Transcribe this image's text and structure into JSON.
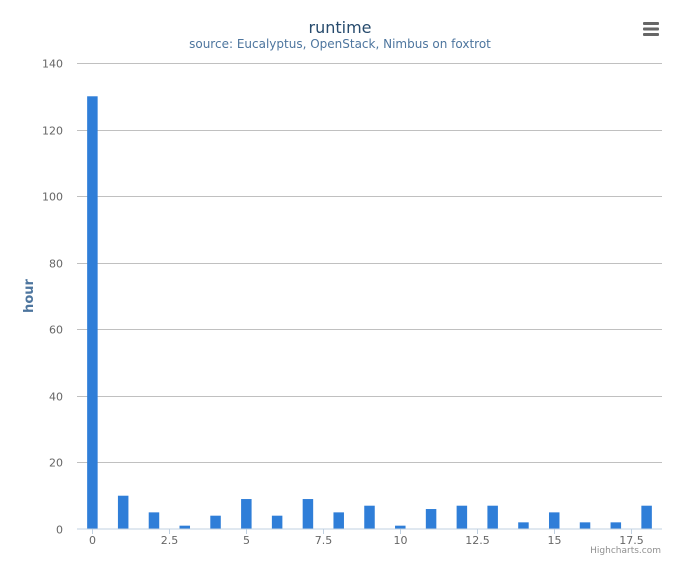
{
  "chart_data": {
    "type": "bar",
    "title": "runtime",
    "subtitle": "source: Eucalyptus, OpenStack, Nimbus on foxtrot",
    "ylabel": "hour",
    "xlabel": "",
    "credits": "Highcharts.com",
    "x": [
      0,
      1,
      2,
      3,
      4,
      5,
      6,
      7,
      8,
      9,
      10,
      11,
      12,
      13,
      14,
      15,
      16,
      17,
      18
    ],
    "values": [
      130,
      10,
      5,
      1,
      4,
      9,
      4,
      9,
      5,
      7,
      1,
      6,
      7,
      7,
      2,
      5,
      2,
      2,
      7
    ],
    "xlim": [
      -0.5,
      18.5
    ],
    "ylim": [
      0,
      140
    ],
    "xticks": [
      0,
      2.5,
      5,
      7.5,
      10,
      12.5,
      15,
      17.5
    ],
    "xtick_labels": [
      "0",
      "2.5",
      "5",
      "7.5",
      "10",
      "12.5",
      "15",
      "17.5"
    ],
    "yticks": [
      0,
      20,
      40,
      60,
      80,
      100,
      120,
      140
    ],
    "ytick_labels": [
      "0",
      "20",
      "40",
      "60",
      "80",
      "100",
      "120",
      "140"
    ],
    "grid": true,
    "legend": "none",
    "colors": {
      "bar": "#2f7ed8",
      "title": "#274b6d",
      "subtitle": "#4d759e",
      "axis_title": "#4d759e",
      "tick_label": "#666666",
      "grid": "#c0c0c0",
      "axis_line": "#c0d0e0",
      "credits": "#909090",
      "menu_icon": "#666666"
    }
  }
}
